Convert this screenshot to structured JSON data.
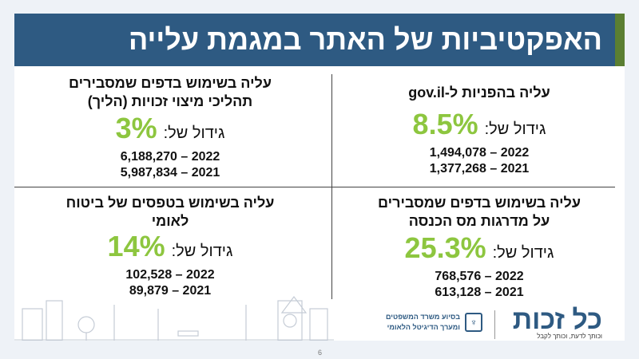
{
  "title": "האפקטיביות של האתר במגמת עלייה",
  "growth_label": "גידול של:",
  "quadrants": [
    {
      "heading1": "עליה בהפניות ל-gov.il",
      "heading2": "",
      "pct": "8.5%",
      "y2022": "1,494,078 – 2022",
      "y2021": "1,377,268 – 2021"
    },
    {
      "heading1": "עליה בשימוש בדפים שמסבירים",
      "heading2": "תהליכי מיצוי זכויות (הליך)",
      "pct": "3%",
      "y2022": "6,188,270 – 2022",
      "y2021": "5,987,834 – 2021"
    },
    {
      "heading1": "עליה בשימוש בדפים שמסבירים",
      "heading2": "על מדרגות מס הכנסה",
      "pct": "25.3%",
      "y2022": "768,576 – 2022",
      "y2021": "613,128 – 2021"
    },
    {
      "heading1": "עליה בשימוש בטפסים של ביטוח",
      "heading2": "לאומי",
      "pct": "14%",
      "y2022": "102,528 – 2022",
      "y2021": "89,879 – 2021"
    }
  ],
  "footer": {
    "logo": "כל זכות",
    "tagline": "וכותך לדעת, וכותך לקבל",
    "ministry1": "בסיוע משרד המשפטים",
    "ministry2": "ומערך הדיגיטל הלאומי",
    "page": "6"
  },
  "colors": {
    "banner": "#2e5a82",
    "accent": "#8dc63f",
    "strip": "#5b7f32"
  }
}
